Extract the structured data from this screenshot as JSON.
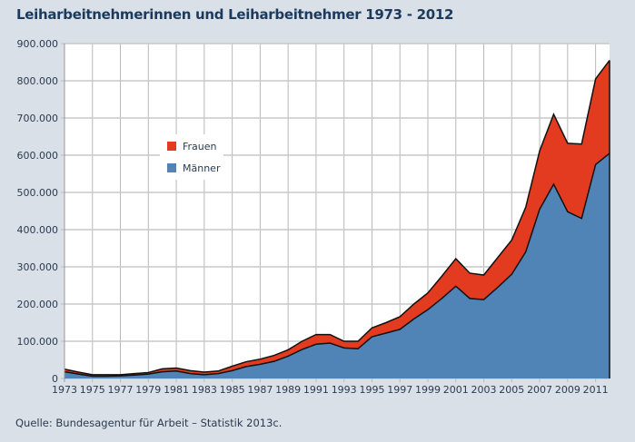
{
  "chart_data": {
    "type": "area",
    "stacked": true,
    "title": "Leiharbeitnehmerinnen und Leiharbeitnehmer 1973 - 2012",
    "source": "Quelle: Bundesagentur für Arbeit – Statistik 2013c.",
    "xlabel": "",
    "ylabel": "",
    "xlim": [
      1973,
      2012
    ],
    "ylim": [
      0,
      900000
    ],
    "grid": true,
    "legend_placement": "upper-left",
    "x": [
      1973,
      1974,
      1975,
      1976,
      1977,
      1978,
      1979,
      1980,
      1981,
      1982,
      1983,
      1984,
      1985,
      1986,
      1987,
      1988,
      1989,
      1990,
      1991,
      1992,
      1993,
      1994,
      1995,
      1996,
      1997,
      1998,
      1999,
      2000,
      2001,
      2002,
      2003,
      2004,
      2005,
      2006,
      2007,
      2008,
      2009,
      2010,
      2011,
      2012
    ],
    "x_tick_labels": [
      "1973",
      "1975",
      "1977",
      "1979",
      "1981",
      "1983",
      "1985",
      "1987",
      "1989",
      "1991",
      "1993",
      "1995",
      "1997",
      "1999",
      "2001",
      "2003",
      "2005",
      "2007",
      "2009",
      "2011"
    ],
    "y_tick_labels": [
      "0",
      "100.000",
      "200.000",
      "300.000",
      "400.000",
      "500.000",
      "600.000",
      "700.000",
      "800.000",
      "900.000"
    ],
    "series": [
      {
        "name": "Männer",
        "color": "#5083b6",
        "values": [
          18000,
          12000,
          6000,
          6000,
          7000,
          9000,
          12000,
          18000,
          20000,
          13000,
          10000,
          13000,
          21000,
          32000,
          38000,
          46000,
          60000,
          78000,
          92000,
          95000,
          82000,
          80000,
          112000,
          122000,
          132000,
          160000,
          185000,
          215000,
          248000,
          215000,
          212000,
          245000,
          280000,
          340000,
          455000,
          522000,
          448000,
          430000,
          575000,
          605000
        ]
      },
      {
        "name": "Frauen",
        "color": "#e33b20",
        "values": [
          7000,
          5000,
          4000,
          4000,
          3000,
          4000,
          4000,
          8000,
          8000,
          8000,
          7000,
          7000,
          12000,
          13000,
          14000,
          16000,
          17000,
          22000,
          26000,
          23000,
          18000,
          20000,
          24000,
          28000,
          34000,
          40000,
          45000,
          60000,
          74000,
          68000,
          66000,
          80000,
          92000,
          120000,
          157000,
          188000,
          184000,
          200000,
          230000,
          250000
        ]
      }
    ]
  }
}
